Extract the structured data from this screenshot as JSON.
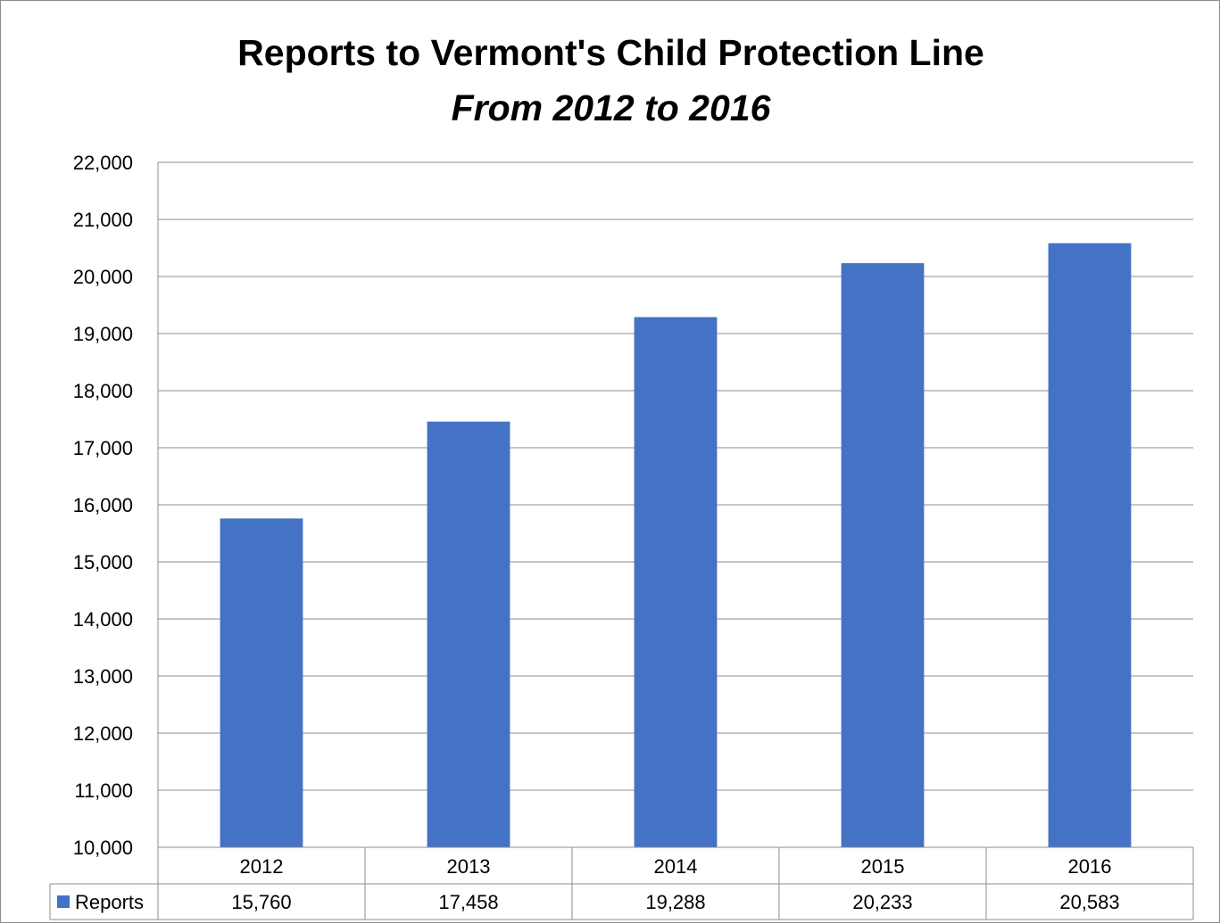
{
  "chart_data": {
    "type": "bar",
    "title": "Reports to Vermont's Child Protection Line",
    "subtitle": "From 2012 to 2016",
    "categories": [
      "2012",
      "2013",
      "2014",
      "2015",
      "2016"
    ],
    "series": [
      {
        "name": "Reports",
        "values": [
          15760,
          17458,
          19288,
          20233,
          20583
        ],
        "color": "#4472c4"
      }
    ],
    "data_table_values": [
      "15,760",
      "17,458",
      "19,288",
      "20,233",
      "20,583"
    ],
    "ylim": [
      10000,
      22000
    ],
    "yticks": [
      10000,
      11000,
      12000,
      13000,
      14000,
      15000,
      16000,
      17000,
      18000,
      19000,
      20000,
      21000,
      22000
    ],
    "ytick_labels": [
      "10,000",
      "11,000",
      "12,000",
      "13,000",
      "14,000",
      "15,000",
      "16,000",
      "17,000",
      "18,000",
      "19,000",
      "20,000",
      "21,000",
      "22,000"
    ],
    "grid": true,
    "legend": "data-table"
  }
}
